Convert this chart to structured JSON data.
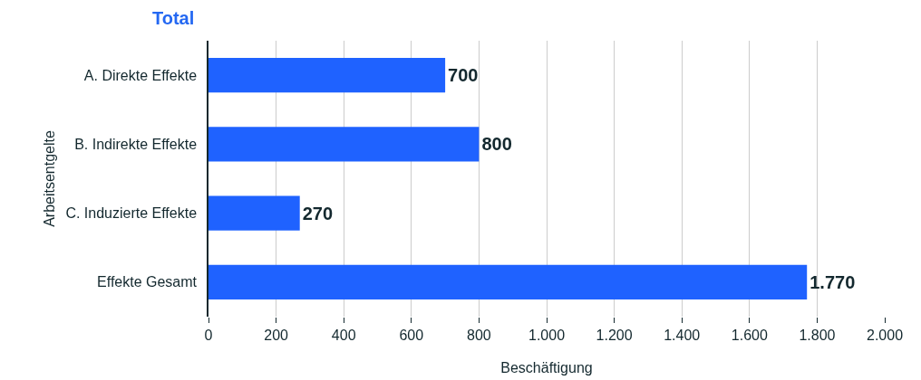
{
  "chart_data": {
    "type": "bar",
    "orientation": "horizontal",
    "title": "Total",
    "xlabel": "Beschäftigung",
    "ylabel": "Arbeitsentgelte",
    "categories": [
      "A. Direkte Effekte",
      "B. Indirekte Effekte",
      "C. Induzierte Effekte",
      "Effekte Gesamt"
    ],
    "values": [
      700,
      800,
      270,
      1770
    ],
    "color": "#1f62ff",
    "value_labels": [
      "700",
      "800",
      "270",
      "1.770"
    ],
    "xlim": [
      0,
      2000
    ],
    "xticks": [
      0,
      200,
      400,
      600,
      800,
      {
        "value": 1000,
        "label": "1.000"
      },
      {
        "value": 1200,
        "label": "1.200"
      },
      {
        "value": 1400,
        "label": "1.400"
      },
      {
        "value": 1600,
        "label": "1.600"
      },
      {
        "value": 1800,
        "label": "1.800"
      },
      {
        "value": 2000,
        "label": "2.000"
      }
    ],
    "grid": "x"
  }
}
